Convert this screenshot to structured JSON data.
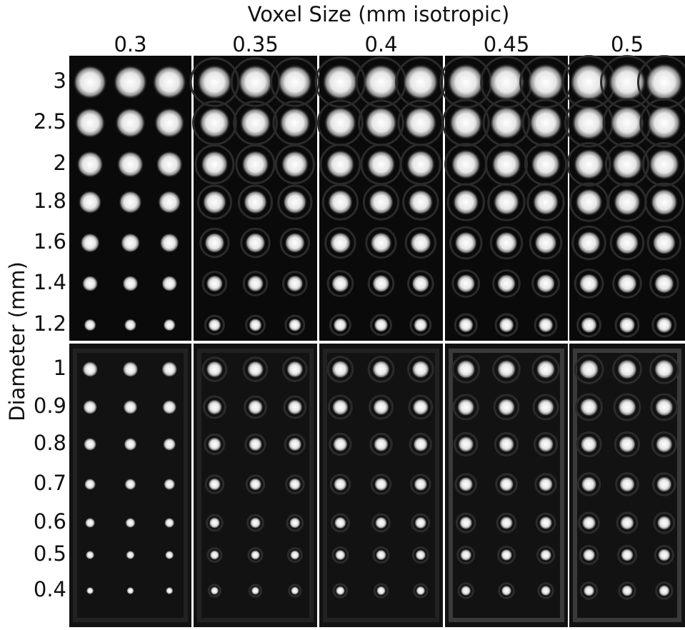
{
  "figure": {
    "title": "Voxel Size (mm isotropic)",
    "columns": [
      "0.3",
      "0.35",
      "0.4",
      "0.45",
      "0.5"
    ],
    "y_label": "Diameter (mm)",
    "top_rows": [
      "3",
      "2.5",
      "2",
      "1.8",
      "1.6",
      "1.4",
      "1.2"
    ],
    "bottom_rows": [
      "1",
      "0.9",
      "0.8",
      "0.7",
      "0.6",
      "0.5",
      "0.4"
    ]
  }
}
